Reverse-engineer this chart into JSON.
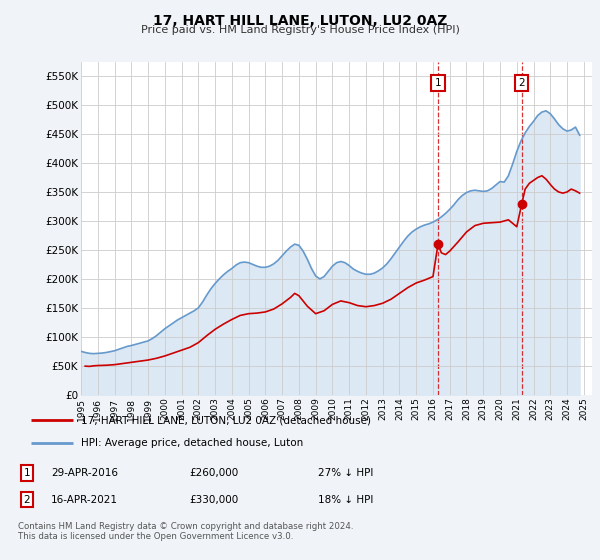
{
  "title": "17, HART HILL LANE, LUTON, LU2 0AZ",
  "subtitle": "Price paid vs. HM Land Registry's House Price Index (HPI)",
  "ylabel_ticks": [
    "£0",
    "£50K",
    "£100K",
    "£150K",
    "£200K",
    "£250K",
    "£300K",
    "£350K",
    "£400K",
    "£450K",
    "£500K",
    "£550K"
  ],
  "ytick_values": [
    0,
    50000,
    100000,
    150000,
    200000,
    250000,
    300000,
    350000,
    400000,
    450000,
    500000,
    550000
  ],
  "ylim": [
    0,
    575000
  ],
  "xlim_start": 1995.0,
  "xlim_end": 2025.5,
  "hpi_color": "#6699CC",
  "hpi_fill_color": "#dce9f5",
  "price_color": "#CC0000",
  "marker_color": "#CC0000",
  "transaction1": {
    "date_num": 2016.3,
    "price": 260000,
    "label": "1",
    "date_str": "29-APR-2016",
    "pct": "27% ↓ HPI"
  },
  "transaction2": {
    "date_num": 2021.3,
    "price": 330000,
    "label": "2",
    "date_str": "16-APR-2021",
    "pct": "18% ↓ HPI"
  },
  "legend_price_label": "17, HART HILL LANE, LUTON, LU2 0AZ (detached house)",
  "legend_hpi_label": "HPI: Average price, detached house, Luton",
  "footnote": "Contains HM Land Registry data © Crown copyright and database right 2024.\nThis data is licensed under the Open Government Licence v3.0.",
  "hpi_data": [
    [
      1995.0,
      75000
    ],
    [
      1995.25,
      73000
    ],
    [
      1995.5,
      71500
    ],
    [
      1995.75,
      71000
    ],
    [
      1996.0,
      71500
    ],
    [
      1996.25,
      72000
    ],
    [
      1996.5,
      73000
    ],
    [
      1996.75,
      74500
    ],
    [
      1997.0,
      76000
    ],
    [
      1997.25,
      78500
    ],
    [
      1997.5,
      81000
    ],
    [
      1997.75,
      83500
    ],
    [
      1998.0,
      85000
    ],
    [
      1998.25,
      87000
    ],
    [
      1998.5,
      89000
    ],
    [
      1998.75,
      91000
    ],
    [
      1999.0,
      93000
    ],
    [
      1999.25,
      97000
    ],
    [
      1999.5,
      102000
    ],
    [
      1999.75,
      108000
    ],
    [
      2000.0,
      114000
    ],
    [
      2000.25,
      119000
    ],
    [
      2000.5,
      124000
    ],
    [
      2000.75,
      129000
    ],
    [
      2001.0,
      133000
    ],
    [
      2001.25,
      137000
    ],
    [
      2001.5,
      141000
    ],
    [
      2001.75,
      145000
    ],
    [
      2002.0,
      150000
    ],
    [
      2002.25,
      160000
    ],
    [
      2002.5,
      172000
    ],
    [
      2002.75,
      183000
    ],
    [
      2003.0,
      192000
    ],
    [
      2003.25,
      200000
    ],
    [
      2003.5,
      207000
    ],
    [
      2003.75,
      213000
    ],
    [
      2004.0,
      218000
    ],
    [
      2004.25,
      224000
    ],
    [
      2004.5,
      228000
    ],
    [
      2004.75,
      229000
    ],
    [
      2005.0,
      228000
    ],
    [
      2005.25,
      225000
    ],
    [
      2005.5,
      222000
    ],
    [
      2005.75,
      220000
    ],
    [
      2006.0,
      220000
    ],
    [
      2006.25,
      222000
    ],
    [
      2006.5,
      226000
    ],
    [
      2006.75,
      232000
    ],
    [
      2007.0,
      240000
    ],
    [
      2007.25,
      248000
    ],
    [
      2007.5,
      255000
    ],
    [
      2007.75,
      260000
    ],
    [
      2008.0,
      258000
    ],
    [
      2008.25,
      248000
    ],
    [
      2008.5,
      234000
    ],
    [
      2008.75,
      218000
    ],
    [
      2009.0,
      205000
    ],
    [
      2009.25,
      200000
    ],
    [
      2009.5,
      204000
    ],
    [
      2009.75,
      213000
    ],
    [
      2010.0,
      222000
    ],
    [
      2010.25,
      228000
    ],
    [
      2010.5,
      230000
    ],
    [
      2010.75,
      228000
    ],
    [
      2011.0,
      223000
    ],
    [
      2011.25,
      217000
    ],
    [
      2011.5,
      213000
    ],
    [
      2011.75,
      210000
    ],
    [
      2012.0,
      208000
    ],
    [
      2012.25,
      208000
    ],
    [
      2012.5,
      210000
    ],
    [
      2012.75,
      214000
    ],
    [
      2013.0,
      219000
    ],
    [
      2013.25,
      226000
    ],
    [
      2013.5,
      235000
    ],
    [
      2013.75,
      245000
    ],
    [
      2014.0,
      255000
    ],
    [
      2014.25,
      265000
    ],
    [
      2014.5,
      274000
    ],
    [
      2014.75,
      281000
    ],
    [
      2015.0,
      286000
    ],
    [
      2015.25,
      290000
    ],
    [
      2015.5,
      293000
    ],
    [
      2015.75,
      295000
    ],
    [
      2016.0,
      298000
    ],
    [
      2016.25,
      302000
    ],
    [
      2016.5,
      307000
    ],
    [
      2016.75,
      313000
    ],
    [
      2017.0,
      320000
    ],
    [
      2017.25,
      328000
    ],
    [
      2017.5,
      337000
    ],
    [
      2017.75,
      344000
    ],
    [
      2018.0,
      349000
    ],
    [
      2018.25,
      352000
    ],
    [
      2018.5,
      353000
    ],
    [
      2018.75,
      352000
    ],
    [
      2019.0,
      351000
    ],
    [
      2019.25,
      352000
    ],
    [
      2019.5,
      356000
    ],
    [
      2019.75,
      362000
    ],
    [
      2020.0,
      368000
    ],
    [
      2020.25,
      367000
    ],
    [
      2020.5,
      378000
    ],
    [
      2020.75,
      398000
    ],
    [
      2021.0,
      420000
    ],
    [
      2021.25,
      438000
    ],
    [
      2021.5,
      452000
    ],
    [
      2021.75,
      463000
    ],
    [
      2022.0,
      472000
    ],
    [
      2022.25,
      482000
    ],
    [
      2022.5,
      488000
    ],
    [
      2022.75,
      490000
    ],
    [
      2023.0,
      485000
    ],
    [
      2023.25,
      476000
    ],
    [
      2023.5,
      466000
    ],
    [
      2023.75,
      459000
    ],
    [
      2024.0,
      455000
    ],
    [
      2024.25,
      457000
    ],
    [
      2024.5,
      462000
    ],
    [
      2024.75,
      448000
    ]
  ],
  "price_data": [
    [
      1995.25,
      49500
    ],
    [
      1995.5,
      49000
    ],
    [
      1995.75,
      50000
    ],
    [
      1996.0,
      50500
    ],
    [
      1996.5,
      51000
    ],
    [
      1997.0,
      52000
    ],
    [
      1997.5,
      54000
    ],
    [
      1998.0,
      56000
    ],
    [
      1998.5,
      58000
    ],
    [
      1999.0,
      60000
    ],
    [
      1999.5,
      63000
    ],
    [
      2000.0,
      67000
    ],
    [
      2000.5,
      72000
    ],
    [
      2001.0,
      77000
    ],
    [
      2001.5,
      82000
    ],
    [
      2002.0,
      90000
    ],
    [
      2002.5,
      102000
    ],
    [
      2003.0,
      113000
    ],
    [
      2003.5,
      122000
    ],
    [
      2004.0,
      130000
    ],
    [
      2004.5,
      137000
    ],
    [
      2005.0,
      140000
    ],
    [
      2005.5,
      141000
    ],
    [
      2006.0,
      143000
    ],
    [
      2006.5,
      148000
    ],
    [
      2007.0,
      157000
    ],
    [
      2007.5,
      168000
    ],
    [
      2007.75,
      175000
    ],
    [
      2008.0,
      171000
    ],
    [
      2008.5,
      153000
    ],
    [
      2009.0,
      140000
    ],
    [
      2009.5,
      145000
    ],
    [
      2010.0,
      156000
    ],
    [
      2010.5,
      162000
    ],
    [
      2011.0,
      159000
    ],
    [
      2011.5,
      154000
    ],
    [
      2012.0,
      152000
    ],
    [
      2012.5,
      154000
    ],
    [
      2013.0,
      158000
    ],
    [
      2013.5,
      165000
    ],
    [
      2014.0,
      175000
    ],
    [
      2014.5,
      185000
    ],
    [
      2015.0,
      193000
    ],
    [
      2015.5,
      198000
    ],
    [
      2016.0,
      204000
    ],
    [
      2016.3,
      260000
    ],
    [
      2016.5,
      245000
    ],
    [
      2016.75,
      242000
    ],
    [
      2017.0,
      248000
    ],
    [
      2017.5,
      264000
    ],
    [
      2018.0,
      281000
    ],
    [
      2018.5,
      292000
    ],
    [
      2019.0,
      296000
    ],
    [
      2019.5,
      297000
    ],
    [
      2020.0,
      298000
    ],
    [
      2020.5,
      302000
    ],
    [
      2021.0,
      290000
    ],
    [
      2021.3,
      330000
    ],
    [
      2021.5,
      355000
    ],
    [
      2021.75,
      365000
    ],
    [
      2022.0,
      370000
    ],
    [
      2022.25,
      375000
    ],
    [
      2022.5,
      378000
    ],
    [
      2022.75,
      372000
    ],
    [
      2023.0,
      363000
    ],
    [
      2023.25,
      355000
    ],
    [
      2023.5,
      350000
    ],
    [
      2023.75,
      348000
    ],
    [
      2024.0,
      350000
    ],
    [
      2024.25,
      355000
    ],
    [
      2024.5,
      352000
    ],
    [
      2024.75,
      348000
    ]
  ],
  "background_color": "#f0f4f8",
  "plot_bg": "#ffffff"
}
